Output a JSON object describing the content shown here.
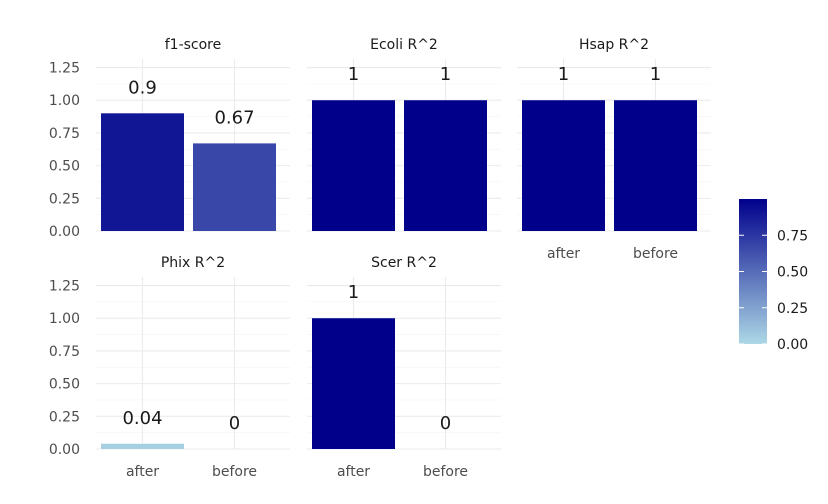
{
  "chart_data": {
    "type": "bar",
    "layout": "facet-wrap",
    "categories": [
      "after",
      "before"
    ],
    "ylim": [
      0,
      1.3
    ],
    "yticks": [
      "0.00",
      "0.25",
      "0.50",
      "0.75",
      "1.00",
      "1.25"
    ],
    "ytick_values": [
      0,
      0.25,
      0.5,
      0.75,
      1.0,
      1.25
    ],
    "panels": [
      {
        "title": "f1-score",
        "values": [
          0.9,
          0.67
        ],
        "labels": [
          "0.9",
          "0.67"
        ]
      },
      {
        "title": "Ecoli R^2",
        "values": [
          1,
          1
        ],
        "labels": [
          "1",
          "1"
        ]
      },
      {
        "title": "Hsap R^2",
        "values": [
          1,
          1
        ],
        "labels": [
          "1",
          "1"
        ]
      },
      {
        "title": "Phix R^2",
        "values": [
          0.04,
          0
        ],
        "labels": [
          "0.04",
          "0"
        ]
      },
      {
        "title": "Scer R^2",
        "values": [
          1,
          0
        ],
        "labels": [
          "1",
          "0"
        ]
      }
    ],
    "legend": {
      "position": "right",
      "ticks": [
        "0.00",
        "0.25",
        "0.50",
        "0.75"
      ],
      "tick_values": [
        0,
        0.25,
        0.5,
        0.75
      ],
      "range": [
        0,
        1
      ],
      "color_low": "#add8e6",
      "color_high": "#00008b"
    },
    "grid": true
  }
}
